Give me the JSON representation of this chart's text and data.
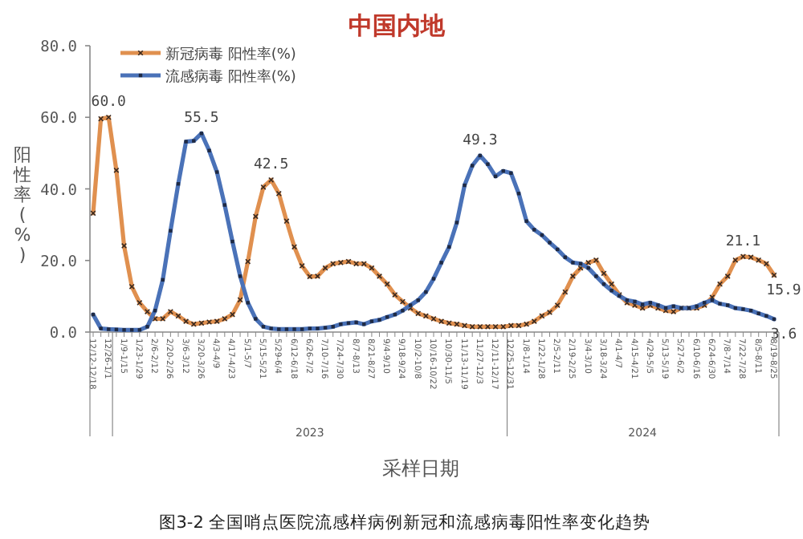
{
  "chart_data": {
    "type": "line",
    "title": "中国内地",
    "xlabel": "采样日期",
    "ylabel": "阳性率(%)",
    "categories": [
      "12/12-12/18",
      null,
      "12/26-1/1",
      null,
      "1/9-1/15",
      null,
      "1/23-1/29",
      null,
      "2/6-2/12",
      null,
      "2/20-2/26",
      null,
      "3/6-3/12",
      null,
      "3/20-3/26",
      null,
      "4/3-4/9",
      null,
      "4/17-4/23",
      null,
      "5/1-5/7",
      null,
      "5/15-5/21",
      null,
      "5/29-6/4",
      null,
      "6/12-6/18",
      null,
      "6/26-7/2",
      null,
      "7/10-7/16",
      null,
      "7/24-7/30",
      null,
      "8/7-8/13",
      null,
      "8/21-8/27",
      null,
      "9/4-9/10",
      null,
      "9/18-9/24",
      null,
      "10/2-10/8",
      null,
      "10/16-10/22",
      null,
      "10/30-11/5",
      null,
      "11/13-11/19",
      null,
      "11/27-12/3",
      null,
      "12/11-12/17",
      null,
      "12/25-12/31",
      null,
      "1/8-1/14",
      null,
      "1/22-1/28",
      null,
      "2/5-2/11",
      null,
      "2/19-2/25",
      null,
      "3/4-3/10",
      null,
      "3/18-3/24",
      null,
      "4/1-4/7",
      null,
      "4/15-4/21",
      null,
      "4/29-5/5",
      null,
      "5/13-5/19",
      null,
      "5/27-6/2",
      null,
      "6/10-6/16",
      null,
      "6/24-6/30",
      null,
      "7/8-7/14",
      null,
      "7/22-7/28",
      null,
      "8/5-8/11",
      null,
      "8/19-8/25"
    ],
    "series": [
      {
        "name": "新冠病毒 阳性率(%)",
        "color": "#e0904f",
        "marker": "cross",
        "values": [
          33.2,
          59.6,
          60.0,
          45.2,
          24.1,
          12.7,
          8.2,
          5.7,
          3.7,
          3.7,
          5.7,
          4.5,
          3.0,
          2.2,
          2.5,
          2.8,
          3.0,
          3.7,
          4.9,
          9.0,
          19.7,
          32.3,
          40.5,
          42.5,
          38.7,
          31.0,
          23.8,
          18.5,
          15.5,
          15.6,
          17.9,
          19.1,
          19.4,
          19.7,
          19.1,
          19.1,
          17.9,
          15.6,
          13.4,
          10.4,
          8.5,
          6.7,
          5.2,
          4.5,
          3.7,
          3.0,
          2.5,
          2.2,
          1.8,
          1.5,
          1.5,
          1.5,
          1.5,
          1.5,
          1.8,
          1.8,
          2.2,
          3.0,
          4.5,
          5.5,
          7.5,
          11.2,
          15.6,
          17.9,
          19.4,
          20.1,
          16.4,
          13.4,
          10.4,
          8.2,
          7.5,
          6.7,
          7.5,
          6.7,
          6.0,
          5.7,
          6.7,
          6.7,
          6.7,
          7.5,
          9.7,
          13.4,
          15.6,
          20.1,
          21.1,
          20.9,
          20.1,
          19.1,
          15.9
        ],
        "value_labels": [
          null,
          null,
          "60.0",
          null,
          null,
          null,
          null,
          null,
          null,
          null,
          null,
          null,
          null,
          null,
          null,
          null,
          null,
          null,
          null,
          null,
          null,
          null,
          null,
          "42.5",
          null,
          null,
          null,
          null,
          null,
          null,
          null,
          null,
          null,
          null,
          null,
          null,
          null,
          null,
          null,
          null,
          null,
          null,
          null,
          null,
          null,
          null,
          null,
          null,
          null,
          null,
          null,
          null,
          null,
          null,
          null,
          null,
          null,
          null,
          null,
          null,
          null,
          null,
          null,
          null,
          null,
          null,
          null,
          null,
          null,
          null,
          null,
          null,
          null,
          null,
          null,
          null,
          null,
          null,
          null,
          null,
          null,
          null,
          null,
          null,
          "21.1",
          null,
          null,
          null,
          "15.9"
        ]
      },
      {
        "name": "流感病毒 阳性率(%)",
        "color": "#4a72b8",
        "marker": "square",
        "values": [
          4.9,
          1.0,
          0.8,
          0.7,
          0.6,
          0.6,
          0.6,
          1.5,
          6.0,
          14.6,
          28.3,
          41.4,
          53.2,
          53.4,
          55.5,
          50.7,
          44.7,
          35.5,
          25.3,
          15.6,
          8.2,
          3.7,
          1.5,
          1.0,
          0.8,
          0.8,
          0.8,
          0.8,
          1.0,
          1.0,
          1.2,
          1.5,
          2.2,
          2.5,
          2.7,
          2.2,
          3.0,
          3.4,
          4.2,
          4.9,
          6.0,
          7.5,
          8.9,
          11.2,
          14.9,
          19.4,
          23.8,
          30.6,
          41.0,
          46.5,
          49.3,
          46.9,
          43.5,
          45.0,
          44.4,
          38.7,
          31.0,
          28.6,
          27.1,
          25.0,
          23.1,
          20.9,
          19.4,
          19.1,
          17.9,
          15.6,
          13.4,
          11.6,
          10.1,
          8.9,
          8.5,
          7.7,
          8.2,
          7.5,
          6.7,
          7.2,
          6.7,
          6.7,
          7.2,
          8.2,
          8.9,
          7.9,
          7.5,
          6.7,
          6.4,
          6.0,
          5.2,
          4.5,
          3.6
        ],
        "value_labels": [
          null,
          null,
          null,
          null,
          null,
          null,
          null,
          null,
          null,
          null,
          null,
          null,
          null,
          null,
          "55.5",
          null,
          null,
          null,
          null,
          null,
          null,
          null,
          null,
          null,
          null,
          null,
          null,
          null,
          null,
          null,
          null,
          null,
          null,
          null,
          null,
          null,
          null,
          null,
          null,
          null,
          null,
          null,
          null,
          null,
          null,
          null,
          null,
          null,
          null,
          null,
          "49.3",
          null,
          null,
          null,
          null,
          null,
          null,
          null,
          null,
          null,
          null,
          null,
          null,
          null,
          null,
          null,
          null,
          null,
          null,
          null,
          null,
          null,
          null,
          null,
          null,
          null,
          null,
          null,
          null,
          null,
          null,
          null,
          null,
          null,
          null,
          null,
          null,
          null,
          "3.6"
        ]
      }
    ],
    "ylim": [
      0,
      80
    ],
    "yticks": [
      {
        "value": 0,
        "label": "0.0"
      },
      {
        "value": 20,
        "label": "20.0"
      },
      {
        "value": 40,
        "label": "40.0"
      },
      {
        "value": 60,
        "label": "60.0"
      },
      {
        "value": 80,
        "label": "80.0"
      }
    ],
    "legend": "top left",
    "line_style": "solid",
    "annotations": [
      "2023",
      "2024",
      "图3-2 全国哨点医院流感样病例新冠和流感病毒阳性率变化趋势"
    ]
  }
}
